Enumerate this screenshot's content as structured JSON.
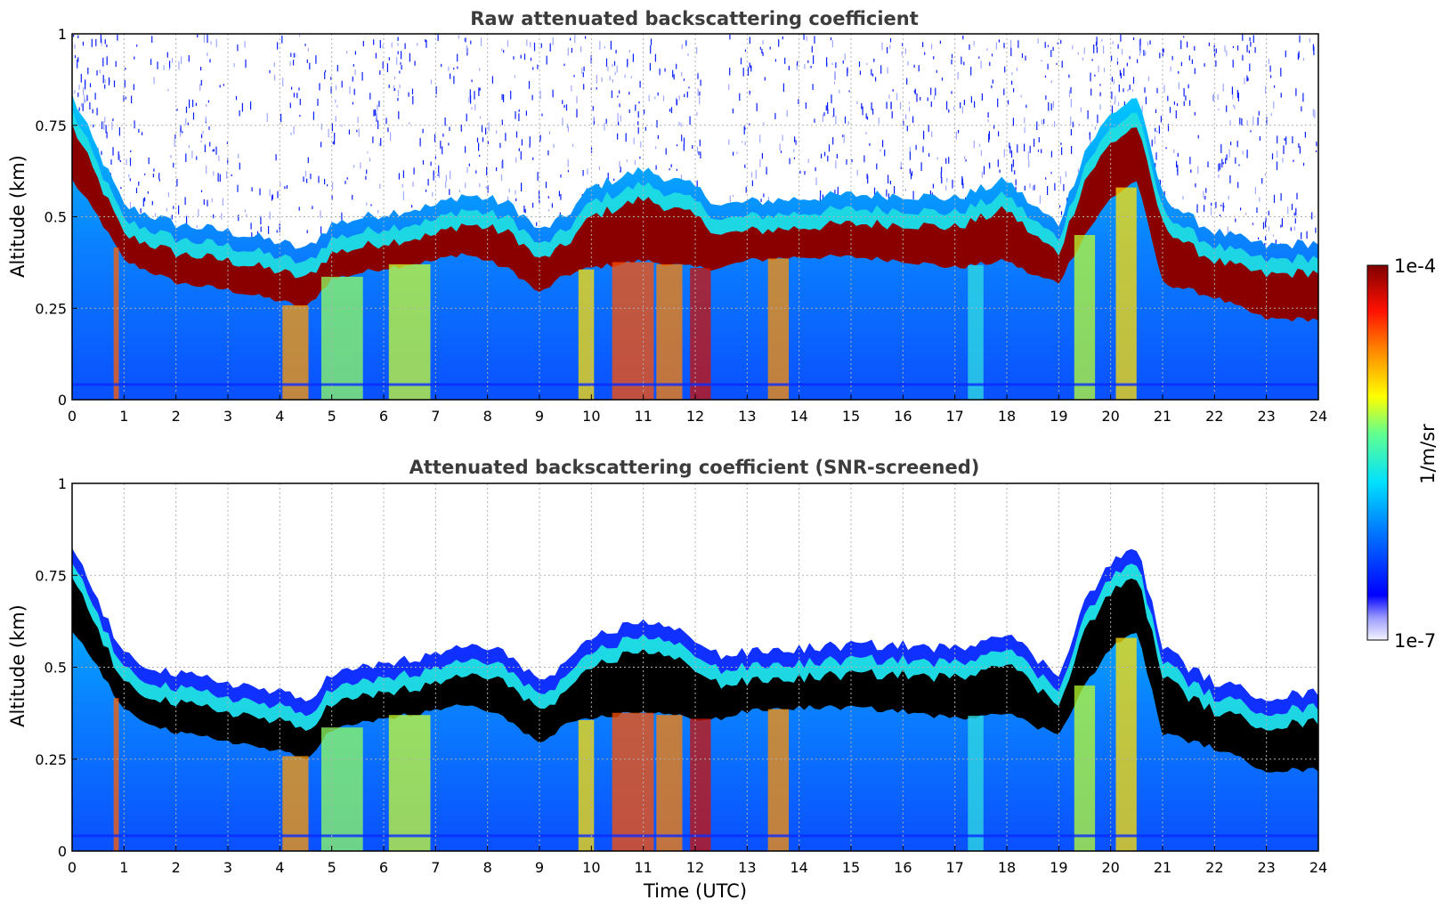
{
  "chart_data": [
    {
      "type": "heatmap",
      "title": "Raw attenuated backscattering coefficient",
      "xlabel": "",
      "ylabel": "Altitude (km)",
      "xlim": [
        0,
        24
      ],
      "ylim": [
        0,
        1
      ],
      "x_ticks": [
        "0",
        "1",
        "2",
        "3",
        "4",
        "5",
        "6",
        "7",
        "8",
        "9",
        "10",
        "11",
        "12",
        "13",
        "14",
        "15",
        "16",
        "17",
        "18",
        "19",
        "20",
        "21",
        "22",
        "23",
        "24"
      ],
      "y_ticks": [
        "0",
        "0.25",
        "0.5",
        "0.75",
        "1"
      ],
      "grid": true,
      "layer_top_km": {
        "x": [
          0,
          0.5,
          1,
          2,
          3,
          4,
          4.5,
          5,
          6,
          7,
          7.5,
          8,
          8.5,
          9,
          9.5,
          10,
          11,
          12,
          12.5,
          13,
          14,
          15,
          16,
          17,
          18,
          18.5,
          19,
          19.5,
          20,
          20.5,
          21,
          21.5,
          22,
          23,
          24
        ],
        "y": [
          0.75,
          0.6,
          0.45,
          0.4,
          0.38,
          0.35,
          0.33,
          0.4,
          0.43,
          0.45,
          0.48,
          0.47,
          0.45,
          0.38,
          0.42,
          0.5,
          0.55,
          0.5,
          0.45,
          0.46,
          0.47,
          0.48,
          0.48,
          0.47,
          0.52,
          0.45,
          0.4,
          0.6,
          0.7,
          0.75,
          0.48,
          0.42,
          0.38,
          0.34,
          0.35
        ]
      },
      "layer_bottom_km": {
        "x": [
          0,
          0.5,
          1,
          2,
          3,
          4,
          4.5,
          5,
          6,
          7,
          7.5,
          8,
          8.5,
          9,
          9.5,
          10,
          11,
          12,
          12.5,
          13,
          14,
          15,
          16,
          17,
          18,
          18.5,
          19,
          19.5,
          20,
          20.5,
          21,
          21.5,
          22,
          23,
          24
        ],
        "y": [
          0.6,
          0.5,
          0.38,
          0.32,
          0.3,
          0.27,
          0.25,
          0.33,
          0.36,
          0.38,
          0.4,
          0.38,
          0.35,
          0.29,
          0.34,
          0.36,
          0.38,
          0.36,
          0.36,
          0.38,
          0.39,
          0.39,
          0.38,
          0.36,
          0.38,
          0.34,
          0.32,
          0.45,
          0.55,
          0.6,
          0.32,
          0.3,
          0.28,
          0.22,
          0.22
        ]
      }
    },
    {
      "type": "heatmap",
      "title": "Attenuated backscattering coefficient (SNR-screened)",
      "xlabel": "Time (UTC)",
      "ylabel": "Altitude (km)",
      "xlim": [
        0,
        24
      ],
      "ylim": [
        0,
        1
      ],
      "x_ticks": [
        "0",
        "1",
        "2",
        "3",
        "4",
        "5",
        "6",
        "7",
        "8",
        "9",
        "10",
        "11",
        "12",
        "13",
        "14",
        "15",
        "16",
        "17",
        "18",
        "19",
        "20",
        "21",
        "22",
        "23",
        "24"
      ],
      "y_ticks": [
        "0",
        "0.25",
        "0.5",
        "0.75",
        "1"
      ],
      "grid": true,
      "screened_region": "above-cloud-top",
      "saturated_color": "#000000"
    }
  ],
  "colorbar": {
    "label": "1/m/sr",
    "min_label": "1e-7",
    "max_label": "1e-4",
    "scale": "log",
    "colormap": "jet"
  }
}
